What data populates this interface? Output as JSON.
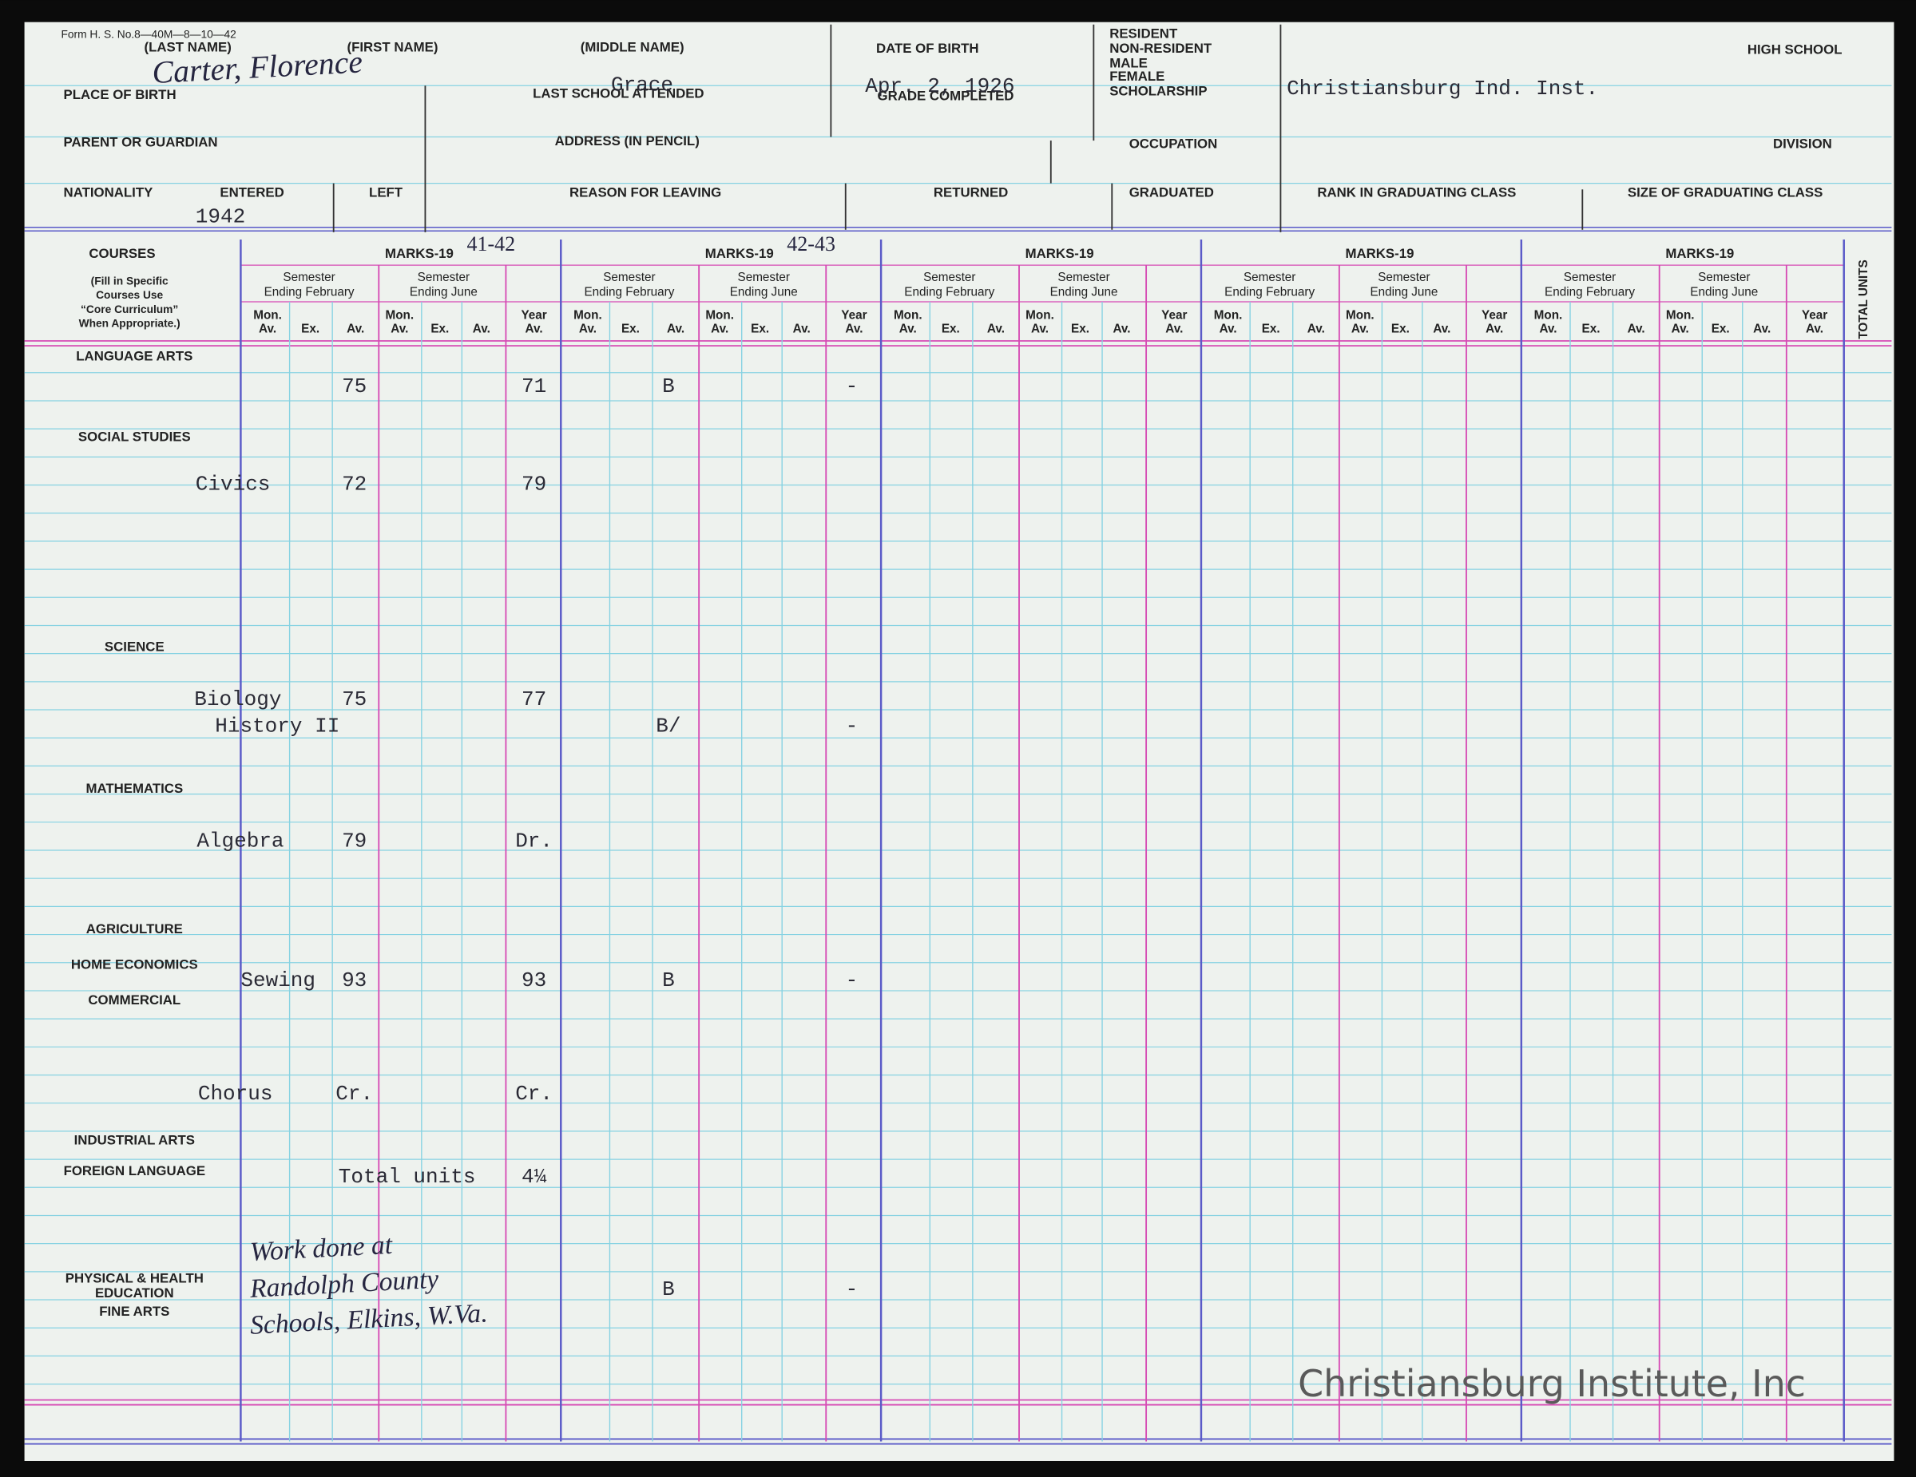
{
  "header": {
    "form_number": "Form H. S. No.8—40M—8—10—42",
    "labels": {
      "last_name": "(LAST NAME)",
      "first_name": "(FIRST NAME)",
      "middle_name": "(MIDDLE NAME)",
      "date_of_birth": "DATE OF BIRTH",
      "resident": "RESIDENT",
      "non_resident": "NON-RESIDENT",
      "male": "MALE",
      "female": "FEMALE",
      "scholarship": "SCHOLARSHIP",
      "high_school": "HIGH SCHOOL",
      "place_of_birth": "PLACE OF BIRTH",
      "last_school": "LAST SCHOOL ATTENDED",
      "grade_completed": "GRADE COMPLETED",
      "parent": "PARENT OR GUARDIAN",
      "address": "ADDRESS (IN PENCIL)",
      "occupation": "OCCUPATION",
      "division": "DIVISION",
      "nationality": "NATIONALITY",
      "entered": "ENTERED",
      "left": "LEFT",
      "reason": "REASON FOR LEAVING",
      "returned": "RETURNED",
      "graduated": "GRADUATED",
      "rank": "RANK IN GRADUATING CLASS",
      "size": "SIZE OF GRADUATING CLASS"
    },
    "values": {
      "name": "Carter, Florence",
      "middle_name": "Grace",
      "date_of_birth": "Apr. 2, 1926",
      "high_school": "Christiansburg Ind. Inst.",
      "entered": "1942"
    }
  },
  "grid": {
    "courses_label": "COURSES",
    "courses_note": [
      "(Fill in Specific",
      "Courses Use",
      "“Core Curriculum”",
      "When Appropriate.)"
    ],
    "marks_label": "MARKS-19",
    "years": [
      "41-42",
      "42-43"
    ],
    "semesters": [
      [
        "Semester",
        "Ending February"
      ],
      [
        "Semester",
        "Ending June"
      ]
    ],
    "columns": [
      [
        "Mon.",
        "Av."
      ],
      [
        "Ex."
      ],
      [
        "Av."
      ],
      [
        "Mon.",
        "Av."
      ],
      [
        "Ex."
      ],
      [
        "Av."
      ],
      [
        "Year",
        "Av."
      ]
    ],
    "total_units": "TOTAL UNITS",
    "categories": [
      "LANGUAGE ARTS",
      "SOCIAL STUDIES",
      "SCIENCE",
      "MATHEMATICS",
      "AGRICULTURE",
      "HOME ECONOMICS",
      "COMMERCIAL",
      "INDUSTRIAL ARTS",
      "FOREIGN LANGUAGE",
      "PHYSICAL & HEALTH",
      "EDUCATION",
      "FINE ARTS"
    ],
    "entries": [
      {
        "marks": {
          "feb_av": "75",
          "year_av": "71",
          "next_feb_av": "B",
          "next_year_av": "-"
        }
      },
      {
        "course": "Civics",
        "marks": {
          "feb_av": "72",
          "year_av": "79"
        }
      },
      {
        "course": "Biology",
        "marks": {
          "feb_av": "75",
          "year_av": "77"
        }
      },
      {
        "course": "History II",
        "marks": {
          "next_feb_av": "B/",
          "next_year_av": "-"
        }
      },
      {
        "course": "Algebra",
        "marks": {
          "feb_av": "79",
          "year_av": "Dr."
        }
      },
      {
        "course": "Sewing",
        "marks": {
          "feb_av": "93",
          "year_av": "93",
          "next_feb_av": "B",
          "next_year_av": "-"
        }
      },
      {
        "course": "Chorus",
        "marks": {
          "feb_av": "Cr.",
          "year_av": "Cr."
        }
      },
      {
        "course": "Total units",
        "marks": {
          "year_av": "4¼"
        }
      },
      {
        "note": [
          "Work done at",
          "Randolph County",
          "Schools, Elkins, W.Va."
        ],
        "marks": {
          "next_feb_av": "B",
          "next_year_av": "-"
        }
      }
    ]
  },
  "watermark": "Christiansburg Institute, Inc"
}
